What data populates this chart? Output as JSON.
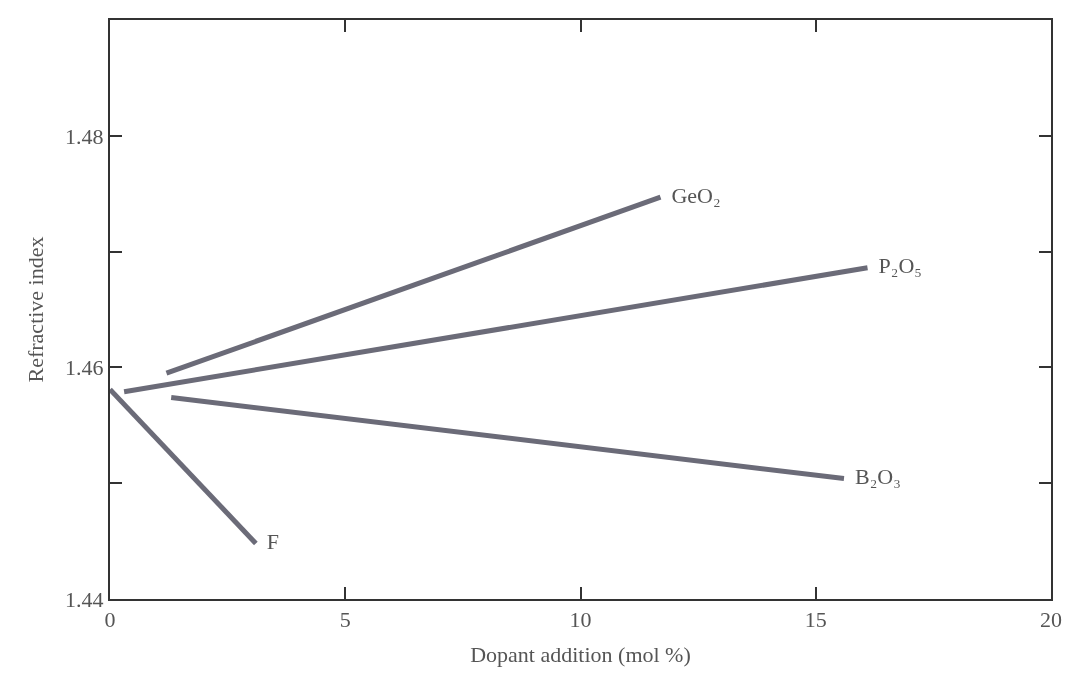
{
  "chart_data": {
    "type": "line",
    "xlabel": "Dopant addition (mol %)",
    "ylabel": "Refractive index",
    "xlim": [
      0,
      20
    ],
    "xticks": [
      0,
      5,
      10,
      15,
      20
    ],
    "ylim": [
      1.44,
      1.49
    ],
    "yticks": [
      1.44,
      {
        "value": 1.45,
        "label": null
      },
      1.46,
      {
        "value": 1.47,
        "label": null
      },
      1.48
    ],
    "legend": false,
    "marker": "none",
    "line_style": "solid",
    "series": [
      {
        "name": "GeO₂",
        "color": "#6b6b78",
        "x": [
          1.2,
          11.7
        ],
        "values": [
          1.4595,
          1.4747
        ]
      },
      {
        "name": "P₂O₅",
        "color": "#6b6b78",
        "x": [
          0.3,
          16.1
        ],
        "values": [
          1.4579,
          1.4686
        ]
      },
      {
        "name": "B₂O₃",
        "color": "#6b6b78",
        "x": [
          1.3,
          15.6
        ],
        "values": [
          1.4574,
          1.4504
        ]
      },
      {
        "name": "F",
        "color": "#6b6b78",
        "x": [
          0,
          3.1
        ],
        "values": [
          1.4581,
          1.4448
        ]
      }
    ]
  }
}
